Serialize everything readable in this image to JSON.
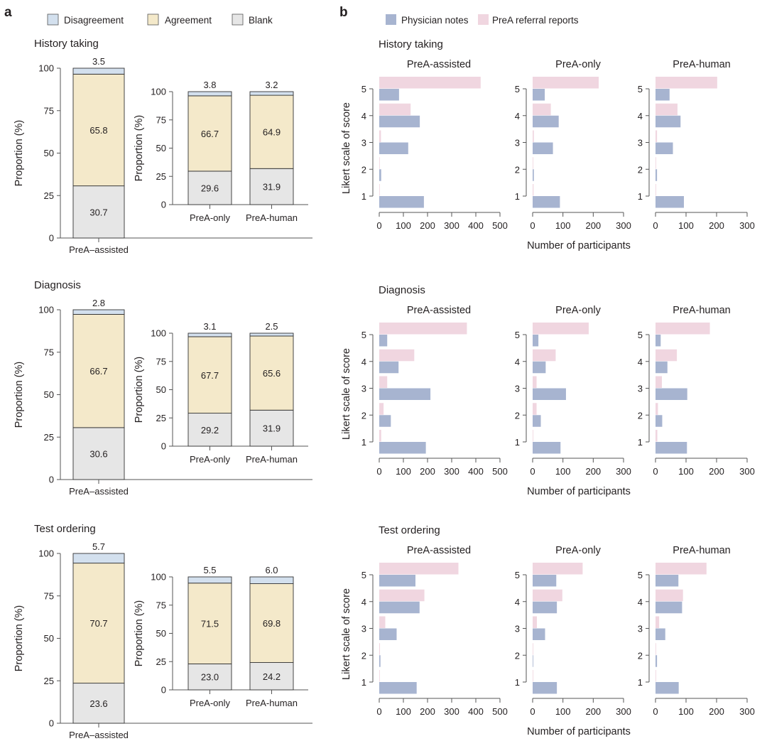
{
  "panels": {
    "a": {
      "letter": "a",
      "legend": [
        {
          "label": "Disagreement",
          "color": "#d3e0ee"
        },
        {
          "label": "Agreement",
          "color": "#f4e9ca"
        },
        {
          "label": "Blank",
          "color": "#e6e6e6"
        }
      ]
    },
    "b": {
      "letter": "b",
      "legend": [
        {
          "label": "Physician notes",
          "color": "#a7b4d0"
        },
        {
          "label": "PreA referral reports",
          "color": "#f0d6e0"
        }
      ]
    }
  },
  "chart_data": [
    {
      "panel": "a",
      "type": "bar",
      "stacked": true,
      "sections": [
        {
          "title": "History taking",
          "main": {
            "category": "PreA–assisted",
            "blank": 30.7,
            "agreement": 65.8,
            "disagreement": 3.5
          },
          "sub": [
            {
              "category": "PreA-only",
              "blank": 29.6,
              "agreement": 66.7,
              "disagreement": 3.8
            },
            {
              "category": "PreA-human",
              "blank": 31.9,
              "agreement": 64.9,
              "disagreement": 3.2
            }
          ]
        },
        {
          "title": "Diagnosis",
          "main": {
            "category": "PreA–assisted",
            "blank": 30.6,
            "agreement": 66.7,
            "disagreement": 2.8
          },
          "sub": [
            {
              "category": "PreA-only",
              "blank": 29.2,
              "agreement": 67.7,
              "disagreement": 3.1
            },
            {
              "category": "PreA-human",
              "blank": 31.9,
              "agreement": 65.6,
              "disagreement": 2.5
            }
          ]
        },
        {
          "title": "Test ordering",
          "main": {
            "category": "PreA–assisted",
            "blank": 23.6,
            "agreement": 70.7,
            "disagreement": 5.7
          },
          "sub": [
            {
              "category": "PreA-only",
              "blank": 23.0,
              "agreement": 71.5,
              "disagreement": 5.5
            },
            {
              "category": "PreA-human",
              "blank": 24.2,
              "agreement": 69.8,
              "disagreement": 6.0
            }
          ]
        }
      ],
      "ylabel": "Proportion (%)",
      "ylim": [
        0,
        100
      ],
      "yticks": [
        "0",
        "25",
        "50",
        "75",
        "100"
      ],
      "legend": "top"
    },
    {
      "panel": "b",
      "type": "bar",
      "orientation": "horizontal",
      "ylabel": "Likert scale of score",
      "xlabel": "Number of participants",
      "likert": [
        "1",
        "2",
        "3",
        "4",
        "5"
      ],
      "series_names": [
        "PreA referral reports",
        "Physician notes"
      ],
      "sections": [
        {
          "title": "History taking",
          "groups": [
            {
              "name": "PreA-assisted",
              "xlim": [
                0,
                500
              ],
              "xticks": [
                "0",
                "100",
                "200",
                "300",
                "400",
                "500"
              ],
              "referral": [
                2,
                2,
                7,
                130,
                420
              ],
              "physician": [
                185,
                8,
                120,
                168,
                82
              ]
            },
            {
              "name": "PreA-only",
              "xlim": [
                0,
                300
              ],
              "xticks": [
                "0",
                "100",
                "200",
                "300"
              ],
              "referral": [
                3,
                2,
                4,
                60,
                218
              ],
              "physician": [
                90,
                4,
                67,
                86,
                40
              ]
            },
            {
              "name": "PreA-human",
              "xlim": [
                0,
                300
              ],
              "xticks": [
                "0",
                "100",
                "200",
                "300"
              ],
              "referral": [
                2,
                2,
                5,
                72,
                202
              ],
              "physician": [
                93,
                5,
                57,
                82,
                46
              ]
            }
          ]
        },
        {
          "title": "Diagnosis",
          "groups": [
            {
              "name": "PreA-assisted",
              "xlim": [
                0,
                500
              ],
              "xticks": [
                "0",
                "100",
                "200",
                "300",
                "400",
                "500"
              ],
              "referral": [
                8,
                18,
                33,
                145,
                363
              ],
              "physician": [
                193,
                48,
                212,
                80,
                33
              ]
            },
            {
              "name": "PreA-only",
              "xlim": [
                0,
                300
              ],
              "xticks": [
                "0",
                "100",
                "200",
                "300"
              ],
              "referral": [
                2,
                13,
                13,
                76,
                185
              ],
              "physician": [
                92,
                27,
                110,
                43,
                19
              ]
            },
            {
              "name": "PreA-human",
              "xlim": [
                0,
                300
              ],
              "xticks": [
                "0",
                "100",
                "200",
                "300"
              ],
              "referral": [
                6,
                8,
                21,
                70,
                178
              ],
              "physician": [
                103,
                22,
                104,
                39,
                17
              ]
            }
          ]
        },
        {
          "title": "Test ordering",
          "groups": [
            {
              "name": "PreA-assisted",
              "xlim": [
                0,
                500
              ],
              "xticks": [
                "0",
                "100",
                "200",
                "300",
                "400",
                "500"
              ],
              "referral": [
                2,
                3,
                25,
                187,
                328
              ],
              "physician": [
                155,
                5,
                72,
                167,
                150
              ]
            },
            {
              "name": "PreA-only",
              "xlim": [
                0,
                300
              ],
              "xticks": [
                "0",
                "100",
                "200",
                "300"
              ],
              "referral": [
                2,
                2,
                14,
                98,
                165
              ],
              "physician": [
                80,
                2,
                41,
                80,
                78
              ]
            },
            {
              "name": "PreA-human",
              "xlim": [
                0,
                300
              ],
              "xticks": [
                "0",
                "100",
                "200",
                "300"
              ],
              "referral": [
                2,
                2,
                12,
                90,
                167
              ],
              "physician": [
                76,
                5,
                32,
                87,
                75
              ]
            }
          ]
        }
      ],
      "legend": "top"
    }
  ]
}
